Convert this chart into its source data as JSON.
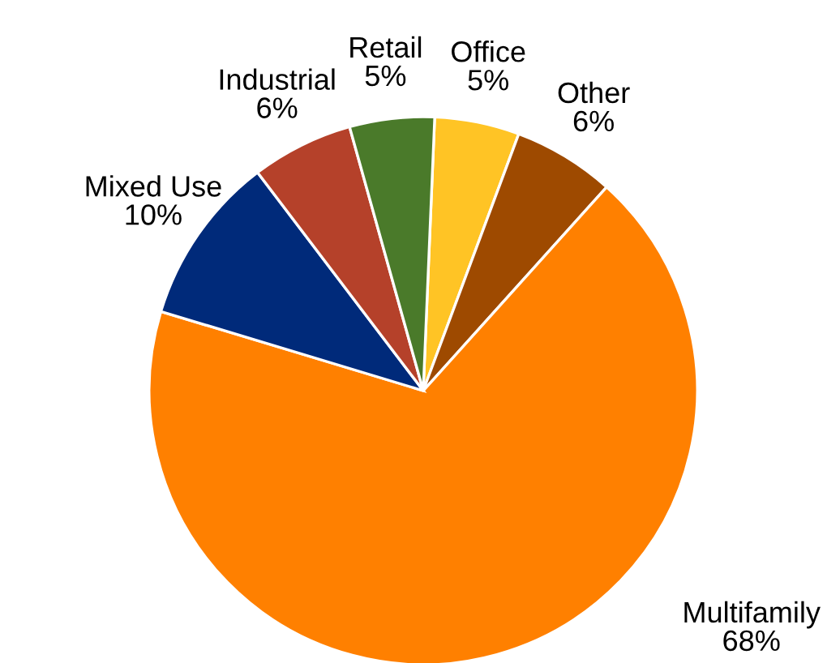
{
  "chart_data": {
    "type": "pie",
    "categories": [
      "Office",
      "Other",
      "Multifamily",
      "Mixed Use",
      "Industrial",
      "Retail"
    ],
    "values": [
      5,
      6,
      68,
      10,
      6,
      5
    ],
    "colors": [
      "#ffc425",
      "#9e4a00",
      "#ff8000",
      "#002a7a",
      "#b5412a",
      "#4a7a2a"
    ],
    "value_labels": [
      "5%",
      "6%",
      "68%",
      "10%",
      "6%",
      "5%"
    ]
  }
}
